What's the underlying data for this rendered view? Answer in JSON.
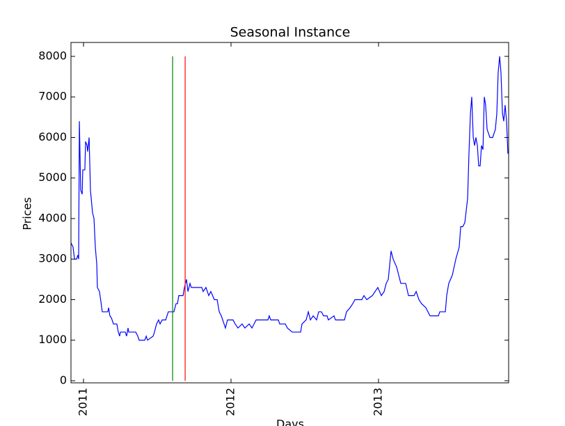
{
  "chart_data": {
    "type": "line",
    "title": "Seasonal Instance",
    "x_label": "Days",
    "y_label": "Prices",
    "xlim": [
      2010.915,
      2013.882
    ],
    "ylim": [
      -52,
      8343
    ],
    "xticks": [
      2011,
      2012,
      2013
    ],
    "yticks": [
      0,
      1000,
      2000,
      3000,
      4000,
      5000,
      6000,
      7000,
      8000
    ],
    "series": [
      {
        "color": "#0000ff",
        "x": [
          2010.915,
          2010.929,
          2010.939,
          2010.953,
          2010.962,
          2010.967,
          2010.972,
          2010.981,
          2010.991,
          2010.995,
          2011.009,
          2011.014,
          2011.024,
          2011.028,
          2011.038,
          2011.047,
          2011.061,
          2011.071,
          2011.08,
          2011.09,
          2011.094,
          2011.108,
          2011.118,
          2011.127,
          2011.165,
          2011.17,
          2011.179,
          2011.189,
          2011.203,
          2011.226,
          2011.236,
          2011.245,
          2011.25,
          2011.283,
          2011.292,
          2011.302,
          2011.307,
          2011.354,
          2011.368,
          2011.377,
          2011.415,
          2011.425,
          2011.434,
          2011.472,
          2011.481,
          2011.495,
          2011.509,
          2011.519,
          2011.533,
          2011.557,
          2011.566,
          2011.575,
          2011.613,
          2011.627,
          2011.637,
          2011.646,
          2011.675,
          2011.684,
          2011.698,
          2011.708,
          2011.722,
          2011.731,
          2011.802,
          2011.811,
          2011.83,
          2011.849,
          2011.863,
          2011.887,
          2011.906,
          2011.92,
          2011.934,
          2011.953,
          2011.962,
          2011.976,
          2012.014,
          2012.028,
          2012.047,
          2012.075,
          2012.094,
          2012.123,
          2012.142,
          2012.17,
          2012.25,
          2012.259,
          2012.269,
          2012.321,
          2012.33,
          2012.368,
          2012.382,
          2012.415,
          2012.472,
          2012.481,
          2012.509,
          2012.524,
          2012.538,
          2012.557,
          2012.58,
          2012.594,
          2012.613,
          2012.627,
          2012.651,
          2012.66,
          2012.698,
          2012.708,
          2012.769,
          2012.783,
          2012.807,
          2012.825,
          2012.84,
          2012.887,
          2012.901,
          2012.92,
          2012.958,
          2012.995,
          2013.019,
          2013.038,
          2013.052,
          2013.066,
          2013.085,
          2013.099,
          2013.123,
          2013.137,
          2013.151,
          2013.184,
          2013.203,
          2013.241,
          2013.255,
          2013.274,
          2013.292,
          2013.321,
          2013.349,
          2013.406,
          2013.415,
          2013.453,
          2013.462,
          2013.476,
          2013.5,
          2013.524,
          2013.547,
          2013.557,
          2013.571,
          2013.585,
          2013.604,
          2013.613,
          2013.623,
          2013.632,
          2013.642,
          2013.651,
          2013.66,
          2013.67,
          2013.679,
          2013.689,
          2013.698,
          2013.708,
          2013.717,
          2013.726,
          2013.736,
          2013.755,
          2013.774,
          2013.792,
          2013.802,
          2013.811,
          2013.821,
          2013.83,
          2013.84,
          2013.849,
          2013.858,
          2013.868,
          2013.877
        ],
        "values": [
          3400,
          3300,
          3000,
          3000,
          3100,
          3000,
          6400,
          4700,
          4600,
          5200,
          5200,
          5900,
          5800,
          5650,
          6000,
          4700,
          4150,
          4000,
          3300,
          2870,
          2300,
          2200,
          1950,
          1700,
          1700,
          1800,
          1600,
          1550,
          1400,
          1400,
          1200,
          1100,
          1200,
          1200,
          1100,
          1300,
          1200,
          1200,
          1100,
          1000,
          1000,
          1100,
          1000,
          1100,
          1200,
          1400,
          1500,
          1400,
          1500,
          1500,
          1600,
          1700,
          1700,
          1900,
          1900,
          2100,
          2100,
          2300,
          2500,
          2200,
          2400,
          2300,
          2300,
          2200,
          2300,
          2100,
          2200,
          2000,
          2000,
          1700,
          1600,
          1400,
          1300,
          1500,
          1500,
          1400,
          1300,
          1400,
          1300,
          1400,
          1300,
          1500,
          1500,
          1600,
          1500,
          1500,
          1400,
          1400,
          1300,
          1200,
          1200,
          1400,
          1500,
          1700,
          1500,
          1600,
          1500,
          1700,
          1700,
          1600,
          1600,
          1500,
          1600,
          1500,
          1500,
          1700,
          1800,
          1900,
          2000,
          2000,
          2100,
          2000,
          2100,
          2300,
          2100,
          2200,
          2400,
          2500,
          3200,
          3000,
          2800,
          2600,
          2400,
          2400,
          2100,
          2100,
          2200,
          2000,
          1900,
          1800,
          1600,
          1600,
          1700,
          1700,
          2100,
          2400,
          2600,
          3000,
          3300,
          3800,
          3800,
          3900,
          4500,
          5600,
          6600,
          7000,
          6000,
          5800,
          6000,
          5800,
          5300,
          5300,
          5800,
          5700,
          7000,
          6800,
          6200,
          6000,
          6000,
          6200,
          6600,
          7600,
          8000,
          7600,
          6600,
          6400,
          6800,
          6400,
          5600
        ]
      }
    ],
    "vlines": [
      {
        "x": 2011.604,
        "ymin": 0,
        "ymax": 8000,
        "color": "#008000"
      },
      {
        "x": 2011.689,
        "ymin": 0,
        "ymax": 8000,
        "color": "#ff0000"
      }
    ]
  }
}
